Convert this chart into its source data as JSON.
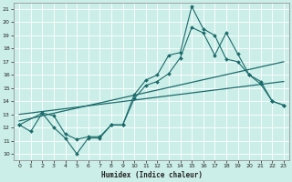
{
  "title": "",
  "xlabel": "Humidex (Indice chaleur)",
  "bg_color": "#cceee8",
  "grid_color": "#ffffff",
  "line_color": "#1a6b6b",
  "xlim": [
    -0.5,
    23.5
  ],
  "ylim": [
    9.5,
    21.5
  ],
  "xticks": [
    0,
    1,
    2,
    3,
    4,
    5,
    6,
    7,
    8,
    9,
    10,
    11,
    12,
    13,
    14,
    15,
    16,
    17,
    18,
    19,
    20,
    21,
    22,
    23
  ],
  "yticks": [
    10,
    11,
    12,
    13,
    14,
    15,
    16,
    17,
    18,
    19,
    20,
    21
  ],
  "line1_x": [
    0,
    1,
    2,
    3,
    4,
    5,
    6,
    7,
    8,
    9,
    10,
    11,
    12,
    13,
    14,
    15,
    16,
    17,
    18,
    19,
    20,
    21,
    22,
    23
  ],
  "line1_y": [
    12.2,
    11.7,
    13.1,
    12.0,
    11.2,
    10.0,
    11.2,
    11.2,
    12.2,
    12.2,
    14.5,
    15.6,
    16.0,
    17.5,
    17.7,
    21.2,
    19.5,
    19.0,
    17.2,
    17.0,
    16.0,
    15.3,
    14.0,
    13.7
  ],
  "line2_x": [
    0,
    2,
    3,
    4,
    5,
    6,
    7,
    8,
    9,
    10,
    11,
    12,
    13,
    14,
    15,
    16,
    17,
    18,
    19,
    20,
    21,
    22,
    23
  ],
  "line2_y": [
    12.2,
    13.1,
    12.9,
    11.5,
    11.1,
    11.3,
    11.3,
    12.2,
    12.2,
    14.2,
    15.2,
    15.5,
    16.1,
    17.3,
    19.6,
    19.2,
    17.5,
    19.2,
    17.6,
    16.0,
    15.5,
    14.0,
    13.7
  ],
  "line3_x": [
    0,
    23
  ],
  "line3_y": [
    12.5,
    17.0
  ],
  "line4_x": [
    0,
    23
  ],
  "line4_y": [
    13.0,
    15.5
  ]
}
